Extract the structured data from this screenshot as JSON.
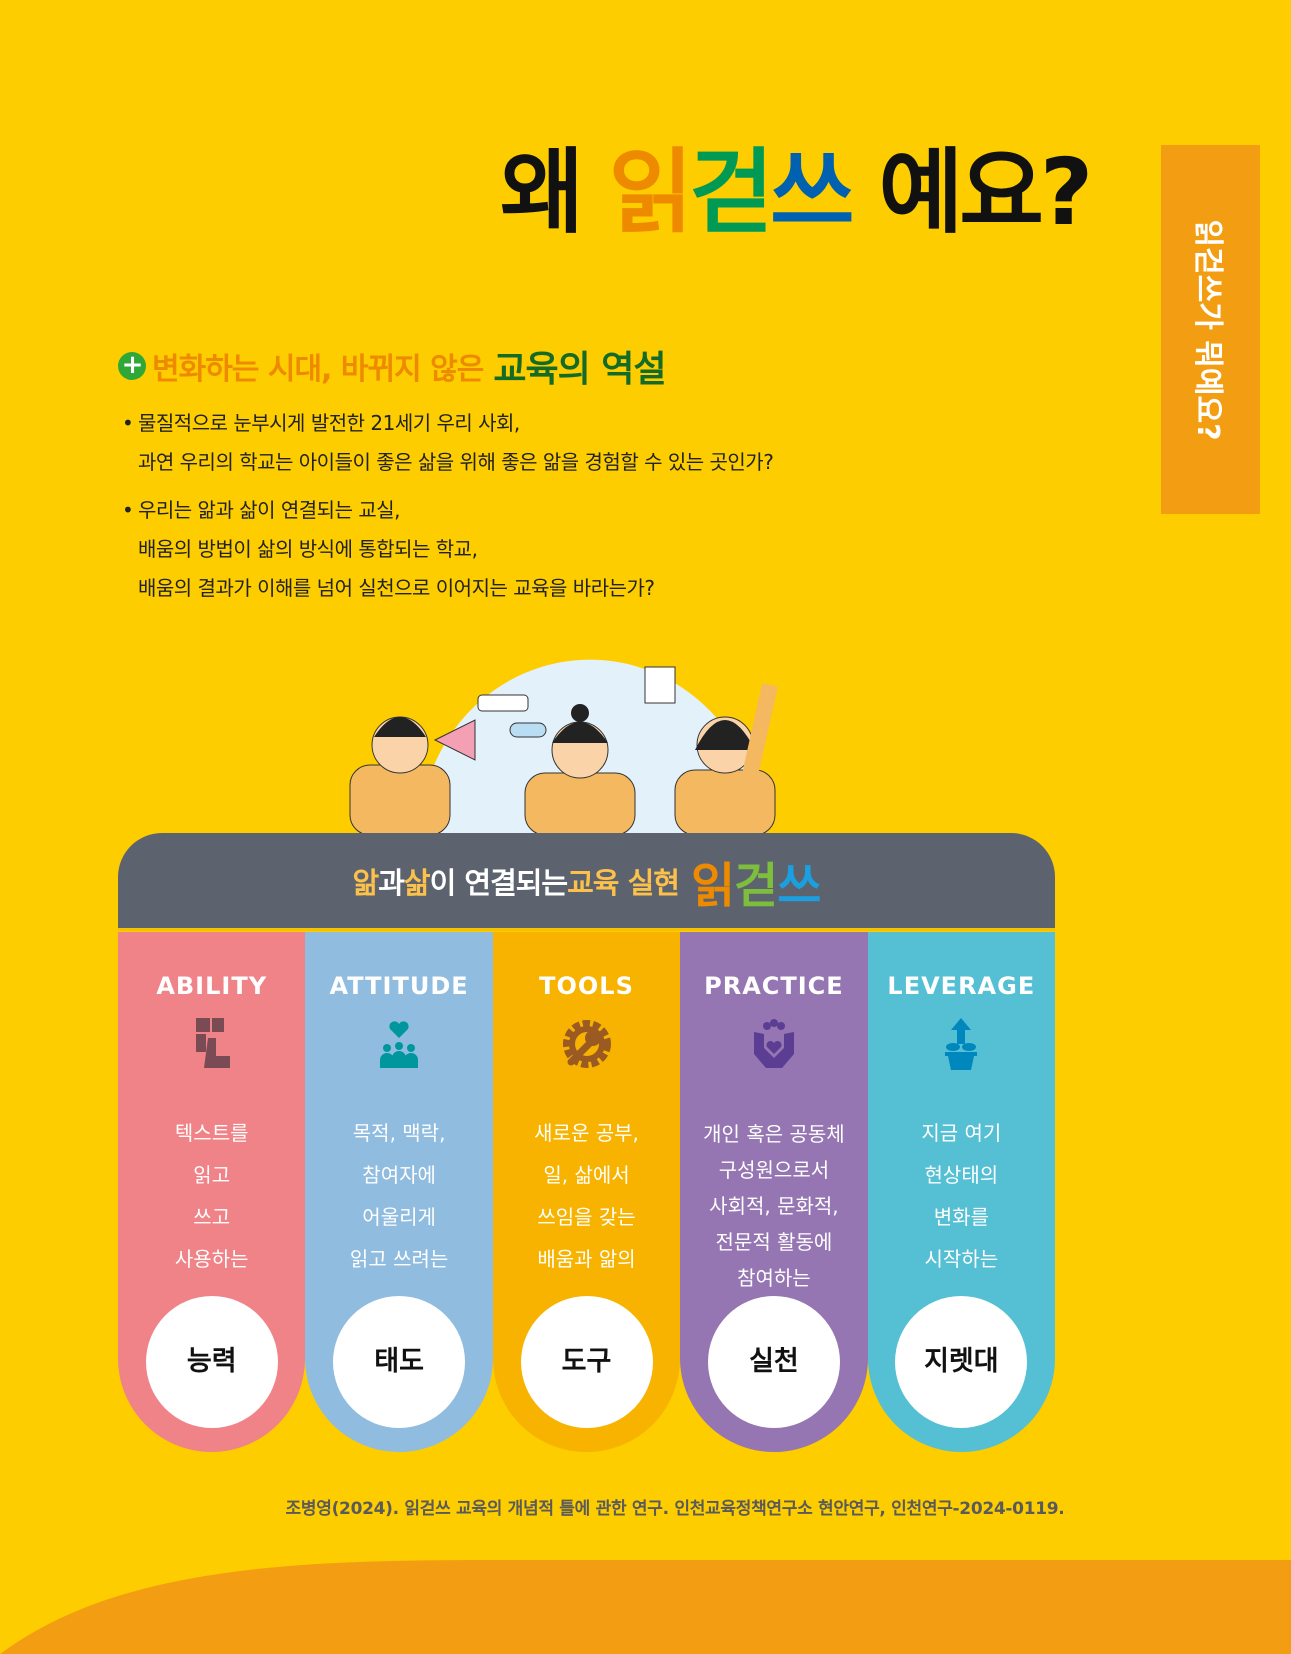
{
  "title": {
    "pre": "왜",
    "brand": [
      "읽",
      "걷",
      "쓰"
    ],
    "post": "예요?"
  },
  "side_tab": "읽걷쓰가 뭐예요?",
  "section": {
    "icon": "plus-circle-icon",
    "lead": "변화하는 시대, 바뀌지 않은",
    "emphasis": "교육의 역설"
  },
  "bullets": [
    [
      "물질적으로 눈부시게 발전한 21세기 우리 사회,",
      "과연 우리의 학교는 아이들이 좋은 삶을 위해 좋은 앎을 경험할 수 있는 곳인가?"
    ],
    [
      "우리는 앎과 삶이 연결되는 교실,",
      "배움의 방법이 삶의 방식에 통합되는 학교,",
      "배움의 결과가 이해를 넘어 실천으로 이어지는 교육을 바라는가?"
    ]
  ],
  "panel": {
    "w1": "앎",
    "t1": "과 ",
    "w2": "삶",
    "t2": "이 연결되는 ",
    "w3": "교육 실현",
    "brand": [
      "읽",
      "걷",
      "쓰"
    ]
  },
  "columns": [
    {
      "en": "ABILITY",
      "icon": "hand-blocks-icon",
      "color": "#EF8388",
      "icon_color": "#7A4A55",
      "lines": [
        "텍스트를",
        "읽고",
        "쓰고",
        "사용하는"
      ],
      "ko": "능력"
    },
    {
      "en": "ATTITUDE",
      "icon": "people-heart-icon",
      "color": "#90BCDF",
      "icon_color": "#00969E",
      "lines": [
        "목적, 맥락,",
        "참여자에",
        "어울리게",
        "읽고 쓰려는"
      ],
      "ko": "태도"
    },
    {
      "en": "TOOLS",
      "icon": "gear-wrench-icon",
      "color": "#F7B300",
      "icon_color": "#9A5A22",
      "lines": [
        "새로운 공부,",
        "일, 삶에서",
        "쓰임을 갖는",
        "배움과 앎의"
      ],
      "ko": "도구"
    },
    {
      "en": "PRACTICE",
      "icon": "hands-community-icon",
      "color": "#9575B2",
      "icon_color": "#5B3E94",
      "lines": [
        "개인 혹은 공동체",
        "구성원으로서",
        "사회적, 문화적,",
        "전문적 활동에",
        "참여하는"
      ],
      "ko": "실천"
    },
    {
      "en": "LEVERAGE",
      "icon": "plant-growth-icon",
      "color": "#55BFD3",
      "icon_color": "#0087BE",
      "lines": [
        "지금 여기",
        "현상태의",
        "변화를",
        "시작하는"
      ],
      "ko": "지렛대"
    }
  ],
  "citation": "조병영(2024). 읽걷쓰 교육의 개념적 틀에 관한 연구. 인천교육정책연구소 현안연구, 인천연구-2024-0119.",
  "colors": {
    "background": "#FDCD00",
    "accent_orange": "#F39E12",
    "panel": "#5D636E"
  }
}
